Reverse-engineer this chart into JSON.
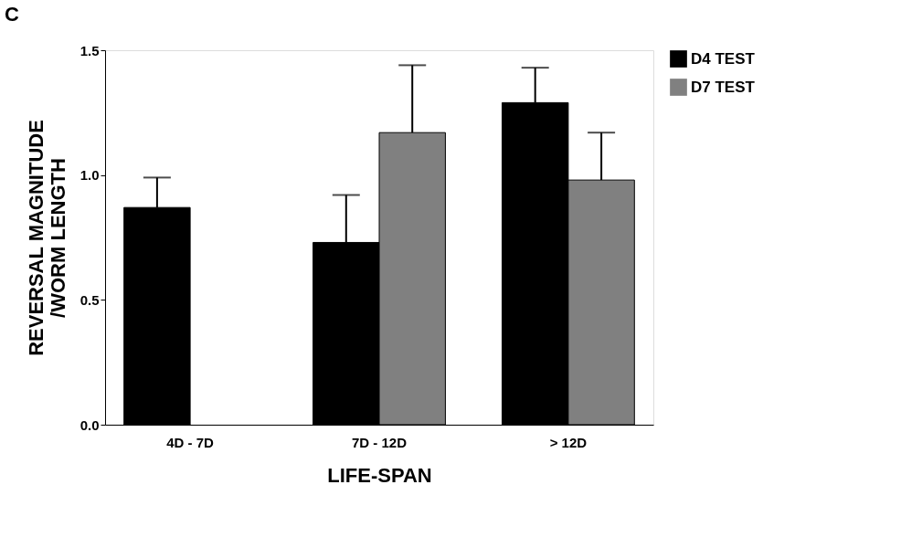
{
  "chart_data": {
    "type": "bar",
    "title": "C",
    "xlabel": "LIFE-SPAN",
    "ylabel": "REVERSAL MAGNITUDE\n/WORM LENGTH",
    "categories": [
      "4D - 7D",
      "7D - 12D",
      "> 12D"
    ],
    "series": [
      {
        "name": "D4 TEST",
        "color": "#000000",
        "values": [
          0.87,
          0.73,
          1.29
        ],
        "errors": [
          [
            0.87,
            0.99
          ],
          [
            0.73,
            0.92
          ],
          [
            1.29,
            1.43
          ]
        ]
      },
      {
        "name": "D7 TEST",
        "color": "#808080",
        "values": [
          null,
          1.17,
          0.98
        ],
        "errors": [
          null,
          [
            1.17,
            1.44
          ],
          [
            0.98,
            1.17
          ]
        ]
      }
    ],
    "ylim": [
      0,
      1.5
    ],
    "yticks": [
      {
        "value": 0,
        "label": "0.0"
      },
      {
        "value": 0.5,
        "label": "0.5"
      },
      {
        "value": 1,
        "label": "1.0"
      },
      {
        "value": 1.5,
        "label": "1.5"
      }
    ],
    "grid": false,
    "legend": "right"
  }
}
